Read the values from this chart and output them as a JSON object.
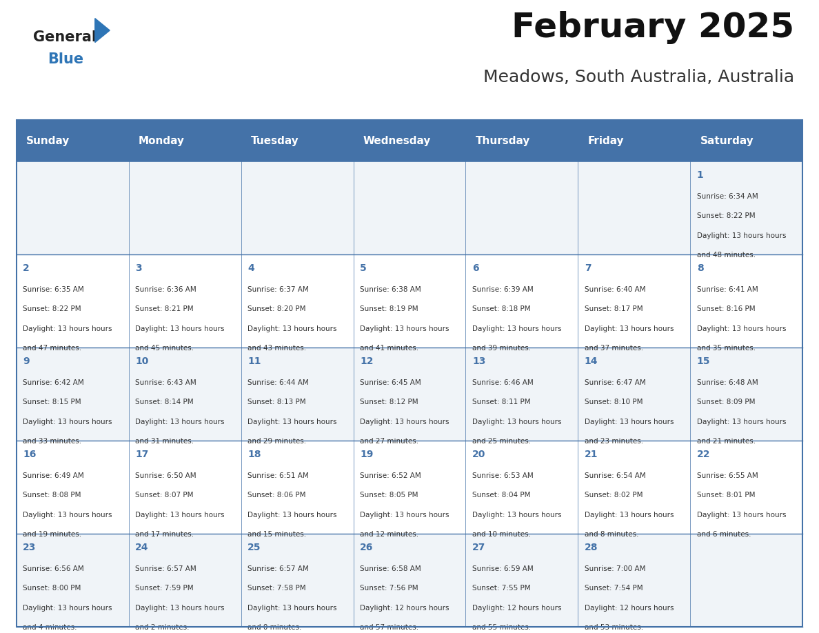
{
  "title": "February 2025",
  "subtitle": "Meadows, South Australia, Australia",
  "header_bg_color": "#4472a8",
  "header_text_color": "#ffffff",
  "header_font_size": 11,
  "day_names": [
    "Sunday",
    "Monday",
    "Tuesday",
    "Wednesday",
    "Thursday",
    "Friday",
    "Saturday"
  ],
  "title_font_size": 36,
  "subtitle_font_size": 18,
  "bg_color": "#ffffff",
  "cell_bg_color": "#f0f4f8",
  "cell_bg_color_alt": "#ffffff",
  "line_color": "#4472a8",
  "day_number_color": "#4472a8",
  "text_color": "#333333",
  "calendar": [
    [
      null,
      null,
      null,
      null,
      null,
      null,
      {
        "day": 1,
        "sunrise": "6:34 AM",
        "sunset": "8:22 PM",
        "daylight": "13 hours and 48 minutes."
      }
    ],
    [
      {
        "day": 2,
        "sunrise": "6:35 AM",
        "sunset": "8:22 PM",
        "daylight": "13 hours and 47 minutes."
      },
      {
        "day": 3,
        "sunrise": "6:36 AM",
        "sunset": "8:21 PM",
        "daylight": "13 hours and 45 minutes."
      },
      {
        "day": 4,
        "sunrise": "6:37 AM",
        "sunset": "8:20 PM",
        "daylight": "13 hours and 43 minutes."
      },
      {
        "day": 5,
        "sunrise": "6:38 AM",
        "sunset": "8:19 PM",
        "daylight": "13 hours and 41 minutes."
      },
      {
        "day": 6,
        "sunrise": "6:39 AM",
        "sunset": "8:18 PM",
        "daylight": "13 hours and 39 minutes."
      },
      {
        "day": 7,
        "sunrise": "6:40 AM",
        "sunset": "8:17 PM",
        "daylight": "13 hours and 37 minutes."
      },
      {
        "day": 8,
        "sunrise": "6:41 AM",
        "sunset": "8:16 PM",
        "daylight": "13 hours and 35 minutes."
      }
    ],
    [
      {
        "day": 9,
        "sunrise": "6:42 AM",
        "sunset": "8:15 PM",
        "daylight": "13 hours and 33 minutes."
      },
      {
        "day": 10,
        "sunrise": "6:43 AM",
        "sunset": "8:14 PM",
        "daylight": "13 hours and 31 minutes."
      },
      {
        "day": 11,
        "sunrise": "6:44 AM",
        "sunset": "8:13 PM",
        "daylight": "13 hours and 29 minutes."
      },
      {
        "day": 12,
        "sunrise": "6:45 AM",
        "sunset": "8:12 PM",
        "daylight": "13 hours and 27 minutes."
      },
      {
        "day": 13,
        "sunrise": "6:46 AM",
        "sunset": "8:11 PM",
        "daylight": "13 hours and 25 minutes."
      },
      {
        "day": 14,
        "sunrise": "6:47 AM",
        "sunset": "8:10 PM",
        "daylight": "13 hours and 23 minutes."
      },
      {
        "day": 15,
        "sunrise": "6:48 AM",
        "sunset": "8:09 PM",
        "daylight": "13 hours and 21 minutes."
      }
    ],
    [
      {
        "day": 16,
        "sunrise": "6:49 AM",
        "sunset": "8:08 PM",
        "daylight": "13 hours and 19 minutes."
      },
      {
        "day": 17,
        "sunrise": "6:50 AM",
        "sunset": "8:07 PM",
        "daylight": "13 hours and 17 minutes."
      },
      {
        "day": 18,
        "sunrise": "6:51 AM",
        "sunset": "8:06 PM",
        "daylight": "13 hours and 15 minutes."
      },
      {
        "day": 19,
        "sunrise": "6:52 AM",
        "sunset": "8:05 PM",
        "daylight": "13 hours and 12 minutes."
      },
      {
        "day": 20,
        "sunrise": "6:53 AM",
        "sunset": "8:04 PM",
        "daylight": "13 hours and 10 minutes."
      },
      {
        "day": 21,
        "sunrise": "6:54 AM",
        "sunset": "8:02 PM",
        "daylight": "13 hours and 8 minutes."
      },
      {
        "day": 22,
        "sunrise": "6:55 AM",
        "sunset": "8:01 PM",
        "daylight": "13 hours and 6 minutes."
      }
    ],
    [
      {
        "day": 23,
        "sunrise": "6:56 AM",
        "sunset": "8:00 PM",
        "daylight": "13 hours and 4 minutes."
      },
      {
        "day": 24,
        "sunrise": "6:57 AM",
        "sunset": "7:59 PM",
        "daylight": "13 hours and 2 minutes."
      },
      {
        "day": 25,
        "sunrise": "6:57 AM",
        "sunset": "7:58 PM",
        "daylight": "13 hours and 0 minutes."
      },
      {
        "day": 26,
        "sunrise": "6:58 AM",
        "sunset": "7:56 PM",
        "daylight": "12 hours and 57 minutes."
      },
      {
        "day": 27,
        "sunrise": "6:59 AM",
        "sunset": "7:55 PM",
        "daylight": "12 hours and 55 minutes."
      },
      {
        "day": 28,
        "sunrise": "7:00 AM",
        "sunset": "7:54 PM",
        "daylight": "12 hours and 53 minutes."
      },
      null
    ]
  ],
  "logo_text_general": "General",
  "logo_text_blue": "Blue",
  "logo_triangle_color": "#2e75b6"
}
